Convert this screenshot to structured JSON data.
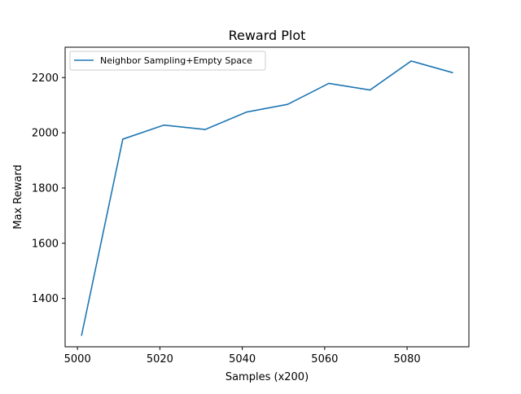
{
  "chart_data": {
    "type": "line",
    "title": "Reward Plot",
    "xlabel": "Samples (x200)",
    "ylabel": "Max Reward",
    "xlim": [
      4997,
      5095
    ],
    "ylim": [
      1225,
      2310
    ],
    "x_ticks": [
      5000,
      5020,
      5040,
      5060,
      5080
    ],
    "y_ticks": [
      1400,
      1600,
      1800,
      2000,
      2200
    ],
    "grid": false,
    "legend_position": "top-left",
    "series": [
      {
        "name": "Neighbor Sampling+Empty Space",
        "color": "#1f77b4",
        "x": [
          5001,
          5011,
          5021,
          5031,
          5041,
          5051,
          5061,
          5071,
          5081,
          5091
        ],
        "y": [
          1267,
          1977,
          2028,
          2012,
          2075,
          2103,
          2179,
          2155,
          2260,
          2218
        ]
      }
    ]
  }
}
